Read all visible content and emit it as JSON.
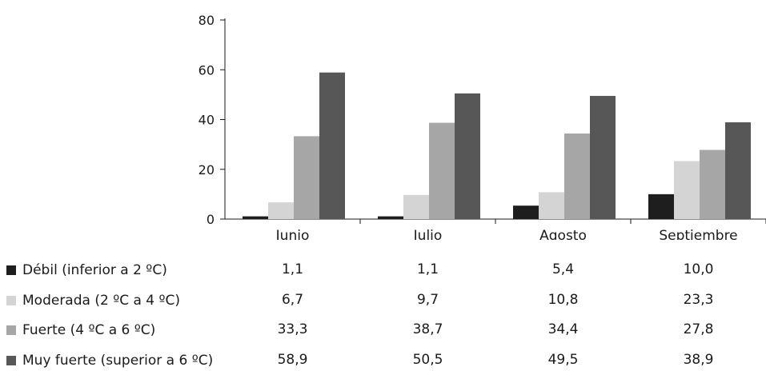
{
  "chart_data": {
    "type": "bar",
    "categories": [
      "Junio",
      "Julio",
      "Agosto",
      "Septiembre"
    ],
    "series": [
      {
        "name": "Débil (inferior a 2 ºC)",
        "color": "#1e1e1e",
        "values": [
          1.1,
          1.1,
          5.4,
          10.0
        ],
        "labels": [
          "1,1",
          "1,1",
          "5,4",
          "10,0"
        ]
      },
      {
        "name": "Moderada (2 ºC a 4 ºC)",
        "color": "#d4d4d4",
        "values": [
          6.7,
          9.7,
          10.8,
          23.3
        ],
        "labels": [
          "6,7",
          "9,7",
          "10,8",
          "23,3"
        ]
      },
      {
        "name": "Fuerte (4 ºC a 6 ºC)",
        "color": "#a6a6a6",
        "values": [
          33.3,
          38.7,
          34.4,
          27.8
        ],
        "labels": [
          "33,3",
          "38,7",
          "34,4",
          "27,8"
        ]
      },
      {
        "name": "Muy fuerte (superior a 6 ºC)",
        "color": "#575757",
        "values": [
          58.9,
          50.5,
          49.5,
          38.9
        ],
        "labels": [
          "58,9",
          "50,5",
          "49,5",
          "38,9"
        ]
      }
    ],
    "yticks": [
      "0",
      "20",
      "40",
      "60",
      "80"
    ],
    "ylim": [
      0,
      80
    ],
    "grid": false,
    "legend": "data-table-below"
  }
}
